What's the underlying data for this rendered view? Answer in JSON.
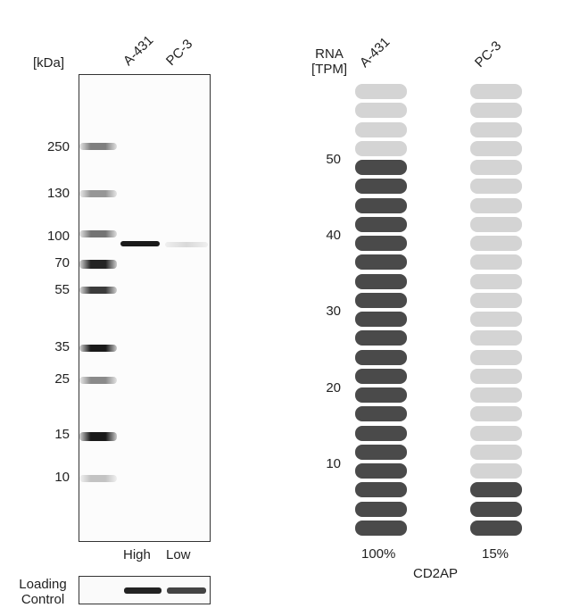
{
  "blot": {
    "unit_label": "[kDa]",
    "lanes": [
      "A-431",
      "PC-3"
    ],
    "markers": [
      "250",
      "130",
      "100",
      "70",
      "55",
      "35",
      "25",
      "15",
      "10"
    ],
    "expression_labels": [
      "High",
      "Low"
    ],
    "loading_label_line1": "Loading",
    "loading_label_line2": "Control"
  },
  "rna": {
    "axis_title_line1": "RNA",
    "axis_title_line2": "[TPM]",
    "lanes": [
      "A-431",
      "PC-3"
    ],
    "ticks": [
      "50",
      "40",
      "30",
      "20",
      "10"
    ],
    "percent_labels": [
      "100%",
      "15%"
    ],
    "gene": "CD2AP",
    "total_segments": 24,
    "filled_segments": [
      20,
      3
    ],
    "colors": {
      "filled": "#4a4a4a",
      "empty": "#d4d4d4"
    }
  }
}
